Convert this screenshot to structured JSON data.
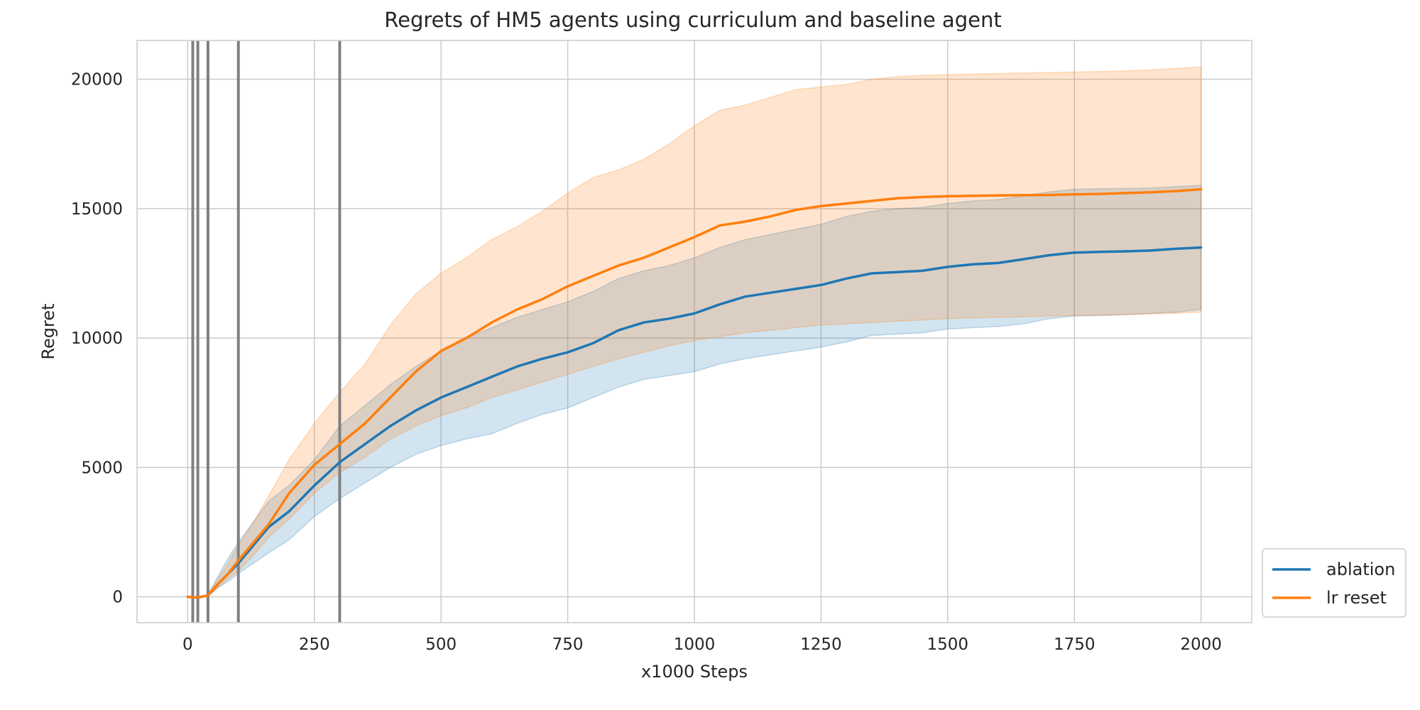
{
  "chart_data": {
    "type": "line",
    "title": "Regrets of HM5 agents using curriculum and baseline agent",
    "xlabel": "x1000 Steps",
    "ylabel": "Regret",
    "xlim": [
      -100,
      2100
    ],
    "ylim": [
      -1000,
      21500
    ],
    "xticks": [
      0,
      250,
      500,
      750,
      1000,
      1250,
      1500,
      1750,
      2000
    ],
    "yticks": [
      0,
      5000,
      10000,
      15000,
      20000
    ],
    "grid": true,
    "legend_position": "right-bottom (outside plot)",
    "curriculum_lines_x": [
      10,
      20,
      40,
      100,
      300
    ],
    "curriculum_line_color": "#808080",
    "series": [
      {
        "name": "ablation",
        "color": "#1f77b4",
        "x": [
          0,
          20,
          40,
          60,
          80,
          100,
          130,
          160,
          200,
          250,
          300,
          350,
          400,
          450,
          500,
          550,
          600,
          650,
          700,
          750,
          800,
          850,
          900,
          950,
          1000,
          1050,
          1100,
          1150,
          1200,
          1250,
          1300,
          1350,
          1400,
          1450,
          1500,
          1550,
          1600,
          1650,
          1700,
          1750,
          1800,
          1850,
          1900,
          1950,
          2000
        ],
        "y": [
          0,
          -30,
          50,
          500,
          900,
          1300,
          2000,
          2700,
          3300,
          4300,
          5200,
          5900,
          6600,
          7200,
          7700,
          8100,
          8500,
          8900,
          9200,
          9450,
          9800,
          10300,
          10600,
          10750,
          10950,
          11300,
          11600,
          11750,
          11900,
          12050,
          12300,
          12500,
          12550,
          12600,
          12750,
          12850,
          12900,
          13050,
          13200,
          13300,
          13330,
          13350,
          13380,
          13450,
          13500
        ],
        "lower": [
          0,
          -30,
          30,
          350,
          600,
          900,
          1300,
          1700,
          2200,
          3100,
          3800,
          4400,
          5000,
          5500,
          5850,
          6100,
          6300,
          6700,
          7050,
          7300,
          7700,
          8100,
          8400,
          8550,
          8700,
          9000,
          9200,
          9350,
          9500,
          9650,
          9850,
          10100,
          10150,
          10200,
          10350,
          10400,
          10450,
          10550,
          10750,
          10850,
          10870,
          10900,
          10950,
          11000,
          11100
        ],
        "upper": [
          0,
          -30,
          80,
          800,
          1500,
          2100,
          2900,
          3700,
          4300,
          5300,
          6600,
          7400,
          8200,
          8900,
          9500,
          10000,
          10400,
          10800,
          11100,
          11400,
          11800,
          12300,
          12600,
          12800,
          13100,
          13500,
          13800,
          14000,
          14200,
          14400,
          14700,
          14900,
          15000,
          15050,
          15200,
          15300,
          15350,
          15500,
          15650,
          15750,
          15770,
          15780,
          15800,
          15850,
          15900
        ]
      },
      {
        "name": "lr reset",
        "color": "#ff7f0e",
        "x": [
          0,
          20,
          40,
          60,
          80,
          100,
          130,
          160,
          200,
          250,
          300,
          350,
          400,
          450,
          500,
          550,
          600,
          650,
          700,
          750,
          800,
          850,
          900,
          950,
          1000,
          1050,
          1100,
          1150,
          1200,
          1250,
          1300,
          1350,
          1400,
          1450,
          1500,
          1550,
          1600,
          1650,
          1700,
          1750,
          1800,
          1850,
          1900,
          1950,
          2000
        ],
        "y": [
          0,
          -30,
          50,
          500,
          900,
          1400,
          2100,
          2800,
          4000,
          5100,
          5900,
          6700,
          7700,
          8700,
          9500,
          10000,
          10600,
          11100,
          11500,
          12000,
          12400,
          12800,
          13100,
          13500,
          13900,
          14350,
          14500,
          14700,
          14950,
          15100,
          15200,
          15300,
          15400,
          15450,
          15480,
          15500,
          15510,
          15520,
          15530,
          15550,
          15570,
          15600,
          15630,
          15680,
          15750
        ],
        "lower": [
          0,
          -30,
          30,
          350,
          700,
          1000,
          1600,
          2300,
          3000,
          4000,
          4800,
          5400,
          6100,
          6600,
          7000,
          7300,
          7700,
          8000,
          8300,
          8600,
          8900,
          9200,
          9450,
          9700,
          9900,
          10050,
          10200,
          10300,
          10400,
          10500,
          10550,
          10600,
          10650,
          10700,
          10750,
          10780,
          10800,
          10820,
          10850,
          10870,
          10880,
          10900,
          10930,
          10960,
          11000
        ],
        "upper": [
          0,
          -30,
          80,
          700,
          1300,
          2000,
          2900,
          3900,
          5300,
          6700,
          7900,
          9000,
          10500,
          11700,
          12500,
          13100,
          13800,
          14300,
          14900,
          15600,
          16200,
          16500,
          16900,
          17500,
          18200,
          18800,
          19000,
          19300,
          19600,
          19700,
          19800,
          20000,
          20100,
          20150,
          20180,
          20200,
          20220,
          20240,
          20260,
          20280,
          20300,
          20320,
          20360,
          20420,
          20480
        ]
      }
    ]
  }
}
